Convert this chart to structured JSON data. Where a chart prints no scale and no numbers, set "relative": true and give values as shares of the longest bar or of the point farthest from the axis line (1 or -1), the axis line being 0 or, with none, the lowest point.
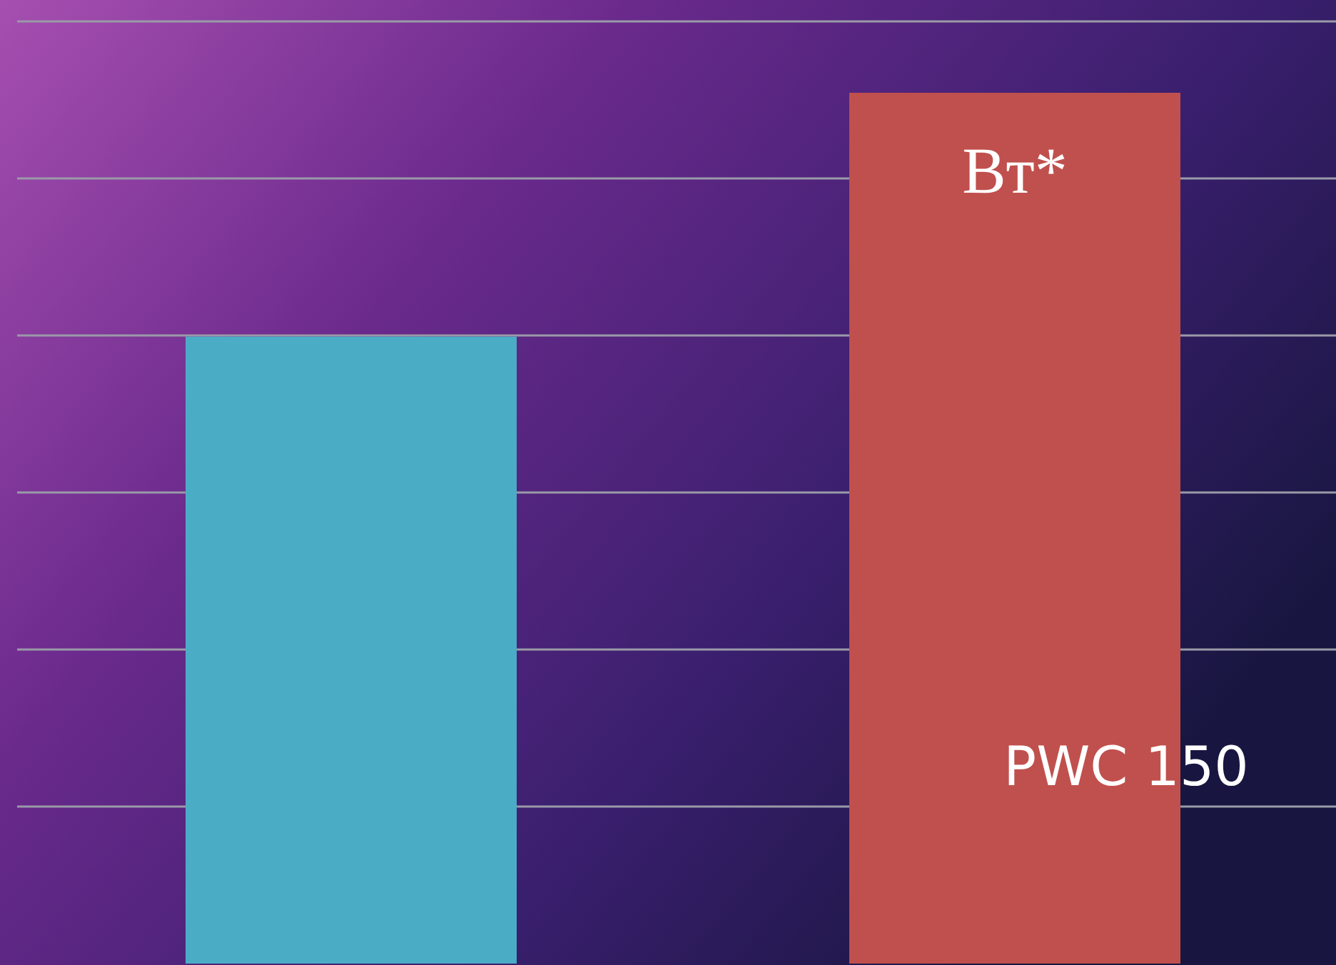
{
  "chart_data": {
    "type": "bar",
    "relative": true,
    "categories": [
      null,
      null
    ],
    "values": [
      0.72,
      1
    ],
    "colors": [
      "#4bacc6",
      "#c0504d"
    ],
    "grid": true,
    "annotations": [
      "Вт*",
      "PWC 150"
    ]
  }
}
